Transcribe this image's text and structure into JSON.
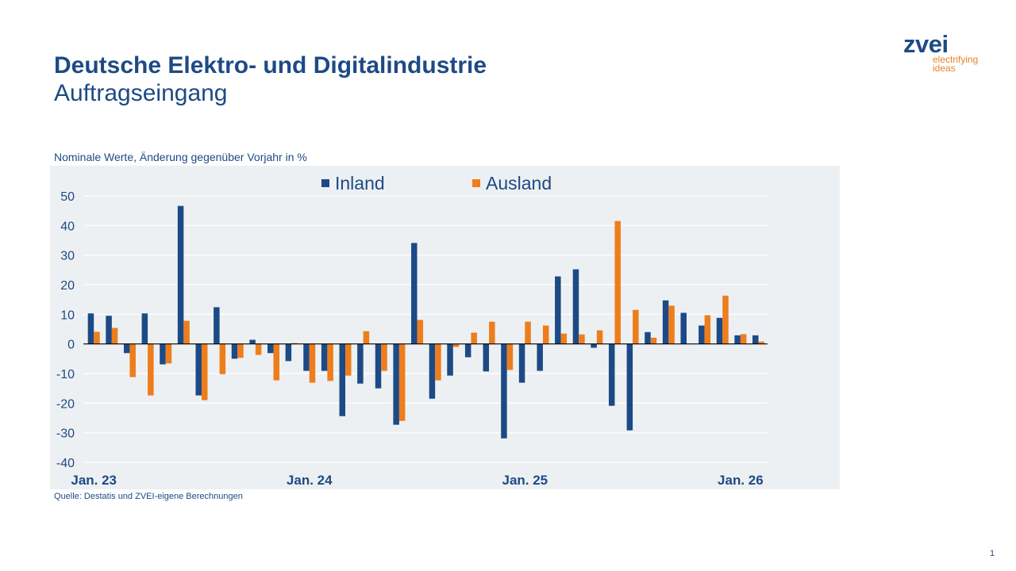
{
  "header": {
    "title": "Deutsche Elektro- und Digitalindustrie",
    "subtitle": "Auftragseingang"
  },
  "logo": {
    "name": "zvei",
    "tagline_1": "electrifying",
    "tagline_2": "ideas"
  },
  "footer": {
    "source": "Quelle: Destatis und ZVEI-eigene Berechnungen",
    "page": "1"
  },
  "chart_data": {
    "type": "bar",
    "title": "",
    "note": "Nominale Werte, Änderung gegenüber Vorjahr in %",
    "xlabel": "",
    "ylabel": "",
    "ylim": [
      -40,
      50
    ],
    "yticks": [
      50,
      40,
      30,
      20,
      10,
      0,
      -10,
      -20,
      -30,
      -40
    ],
    "grid": true,
    "legend": "top-center",
    "x_tick_labels": [
      {
        "index": 0,
        "label": "Jan. 23"
      },
      {
        "index": 12,
        "label": "Jan. 24"
      },
      {
        "index": 24,
        "label": "Jan. 25"
      },
      {
        "index": 36,
        "label": "Jan. 26"
      }
    ],
    "categories": [
      "Jan 23",
      "Feb 23",
      "Mar 23",
      "Apr 23",
      "May 23",
      "Jun 23",
      "Jul 23",
      "Aug 23",
      "Sep 23",
      "Oct 23",
      "Nov 23",
      "Dec 23",
      "Jan 24",
      "Feb 24",
      "Mar 24",
      "Apr 24",
      "May 24",
      "Jun 24",
      "Jul 24",
      "Aug 24",
      "Sep 24",
      "Oct 24",
      "Nov 24",
      "Dec 24",
      "Jan 25",
      "Feb 25",
      "Mar 25",
      "Apr 25",
      "May 25",
      "Jun 25",
      "Jul 25",
      "Aug 25",
      "Sep 25",
      "Oct 25",
      "Nov 25",
      "Dec 25",
      "Jan 26",
      "Feb 26"
    ],
    "series": [
      {
        "name": "Inland",
        "color": "#1c4a87",
        "values": [
          10.3,
          9.5,
          -3.1,
          10.3,
          -6.9,
          46.6,
          -17.4,
          12.4,
          -5.0,
          1.4,
          -3.1,
          -5.8,
          -9.1,
          -9.1,
          -24.4,
          -13.4,
          -15.0,
          -27.3,
          34.1,
          -18.5,
          -10.7,
          -4.5,
          -9.3,
          -31.9,
          -13.1,
          -9.1,
          22.8,
          25.2,
          -1.3,
          -20.9,
          -29.2,
          4.0,
          14.7,
          10.5,
          6.2,
          8.8,
          2.9,
          2.9
        ]
      },
      {
        "name": "Ausland",
        "color": "#ee7d1c",
        "values": [
          4.1,
          5.4,
          -11.2,
          -17.4,
          -6.6,
          7.8,
          -19.0,
          -10.2,
          -4.7,
          -3.7,
          -12.3,
          0.3,
          -13.1,
          -12.5,
          -10.7,
          4.3,
          -9.1,
          -26.0,
          8.1,
          -12.3,
          -1.0,
          3.8,
          7.5,
          -8.8,
          7.5,
          6.2,
          3.5,
          3.2,
          4.6,
          41.5,
          11.5,
          2.1,
          12.9,
          null,
          9.7,
          16.3,
          3.3,
          0.8
        ]
      }
    ]
  }
}
